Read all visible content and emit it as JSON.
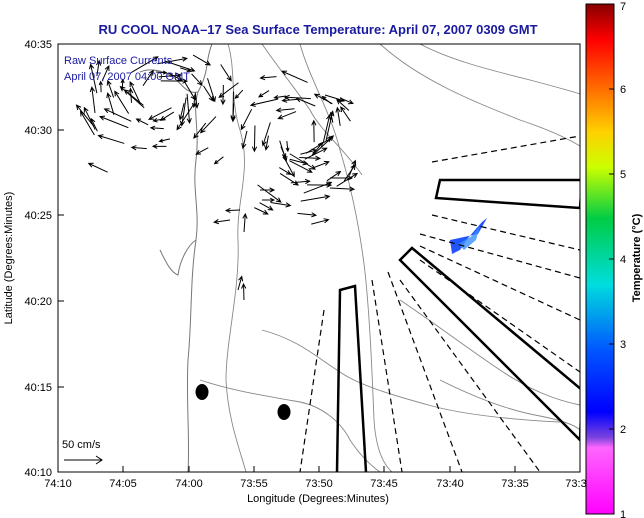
{
  "chart_data": {
    "type": "map",
    "title": "RU COOL  NOAA–17  Sea Surface Temperature:  April 07, 2007 0309 GMT",
    "xlabel": "Longitude (Degrees:Minutes)",
    "ylabel": "Latitude (Degrees:Minutes)",
    "x_tick_labels": [
      "74:10",
      "74:05",
      "74:00",
      "73:55",
      "73:50",
      "73:45",
      "73:40",
      "73:35",
      "73:3"
    ],
    "y_tick_labels": [
      "40:35",
      "40:30",
      "40:25",
      "40:20",
      "40:15",
      "40:10"
    ],
    "xlim_minutes_west": [
      4450,
      4410
    ],
    "ylim_minutes_north": [
      2410,
      2435
    ],
    "annotations": [
      "Raw Surface Currents",
      "April 07, 2007 04:00 GMT"
    ],
    "scale_label": "50 cm/s",
    "colorbar": {
      "label": "Temperature (°C)",
      "range": [
        1,
        7
      ],
      "tick_labels": [
        "1",
        "2",
        "3",
        "4",
        "5",
        "6",
        "7"
      ]
    },
    "sst_patch": {
      "lon_min": 4417.5,
      "lon_max": 4419.5,
      "lat_min": 2422.8,
      "lat_max": 2424.2,
      "temp_c": 2.2
    },
    "markers": [
      {
        "lon": 4438.8,
        "lat": 2414.0
      },
      {
        "lon": 4432.3,
        "lat": 2413.3
      }
    ],
    "colors": {
      "title": "#1a1aa0",
      "coast": "#777777",
      "vectors": "#000000"
    }
  }
}
